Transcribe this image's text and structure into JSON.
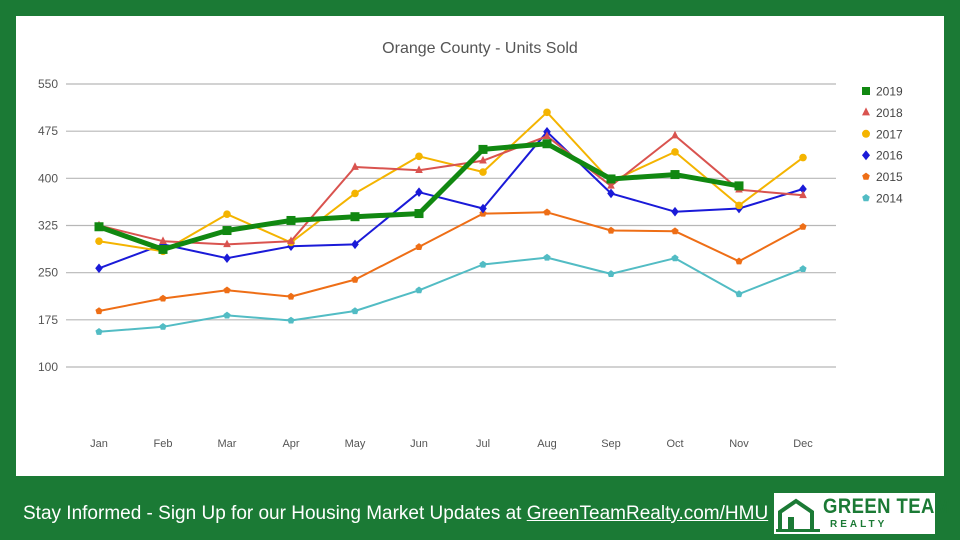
{
  "footer": {
    "text": "Stay Informed - Sign Up for our Housing Market Updates at ",
    "link_text": "GreenTeamRealty.com/HMU"
  },
  "logo": {
    "name": "GREEN TEAM",
    "sub": "REALTY",
    "icon": "house-icon"
  },
  "colors": {
    "background": "#1b7a35",
    "panel": "#ffffff",
    "grid": "#b7b7b7"
  },
  "chart_data": {
    "type": "line",
    "title": "Orange County - Units Sold",
    "xlabel": "",
    "ylabel": "",
    "categories": [
      "Jan",
      "Feb",
      "Mar",
      "Apr",
      "May",
      "Jun",
      "Jul",
      "Aug",
      "Sep",
      "Oct",
      "Nov",
      "Dec"
    ],
    "yticks": [
      100,
      175,
      250,
      325,
      400,
      475,
      550
    ],
    "ylim": [
      25,
      550
    ],
    "grid": true,
    "legend_position": "right",
    "series": [
      {
        "name": "2019",
        "color": "#118811",
        "marker": "square",
        "line_width": 5,
        "values": [
          323,
          287,
          317,
          333,
          339,
          344,
          446,
          455,
          399,
          406,
          388,
          null
        ]
      },
      {
        "name": "2018",
        "color": "#d9534f",
        "marker": "triangle",
        "line_width": 2,
        "values": [
          325,
          300,
          295,
          300,
          418,
          413,
          428,
          467,
          388,
          468,
          382,
          373
        ]
      },
      {
        "name": "2017",
        "color": "#f4b400",
        "marker": "circle",
        "line_width": 2,
        "values": [
          300,
          284,
          343,
          298,
          376,
          435,
          410,
          505,
          395,
          442,
          357,
          433
        ]
      },
      {
        "name": "2016",
        "color": "#1a1ad8",
        "marker": "diamond",
        "line_width": 2,
        "values": [
          257,
          295,
          273,
          292,
          295,
          378,
          352,
          474,
          376,
          347,
          352,
          383
        ]
      },
      {
        "name": "2015",
        "color": "#ee6e16",
        "marker": "pentagon",
        "line_width": 2,
        "values": [
          189,
          209,
          222,
          212,
          239,
          291,
          344,
          346,
          317,
          316,
          268,
          323
        ]
      },
      {
        "name": "2014",
        "color": "#52bcc4",
        "marker": "pentagon",
        "line_width": 2,
        "values": [
          156,
          164,
          182,
          174,
          189,
          222,
          263,
          274,
          248,
          273,
          216,
          256
        ]
      }
    ]
  }
}
